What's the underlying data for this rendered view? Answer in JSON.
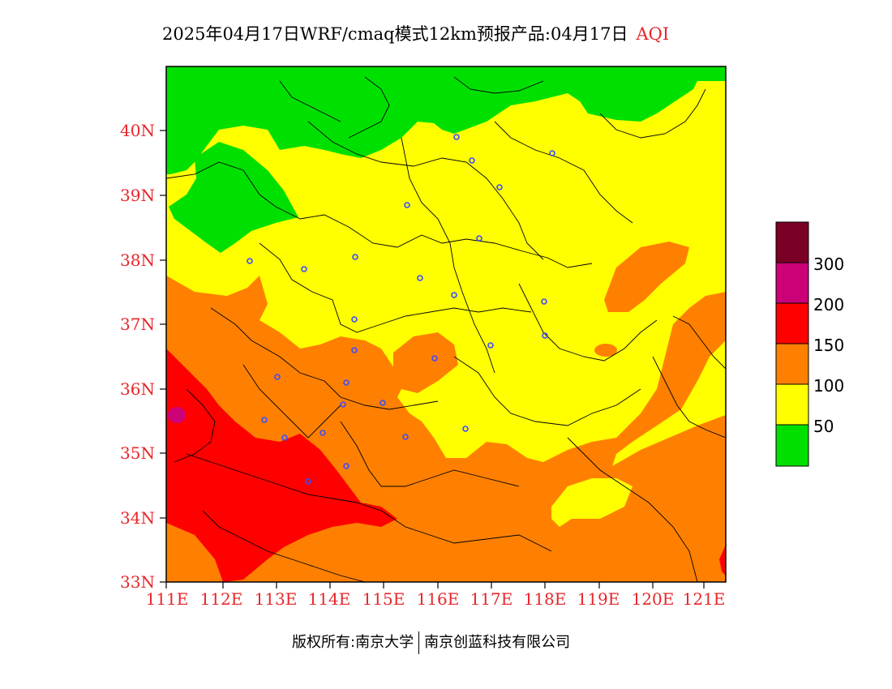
{
  "title": {
    "main": "2025年04月17日WRF/cmaq模式12km预报产品:04月17日",
    "product": "AQI"
  },
  "map": {
    "lat_labels": [
      "40N",
      "39N",
      "38N",
      "37N",
      "36N",
      "35N",
      "34N",
      "33N"
    ],
    "lon_labels": [
      "111E",
      "112E",
      "113E",
      "114E",
      "115E",
      "116E",
      "117E",
      "118E",
      "119E",
      "120E",
      "121E"
    ],
    "extent": {
      "lon_min": 111,
      "lon_max": 121.4,
      "lat_min": 33,
      "lat_max": 41
    }
  },
  "legend": {
    "labels": [
      "300",
      "200",
      "150",
      "100",
      "50"
    ],
    "colors": [
      "#7b0025",
      "#cc0077",
      "#ff0000",
      "#ff8000",
      "#ffff00",
      "#00e000"
    ]
  },
  "footer": {
    "left": "版权所有:南京大学",
    "right": "南京创蓝科技有限公司"
  }
}
